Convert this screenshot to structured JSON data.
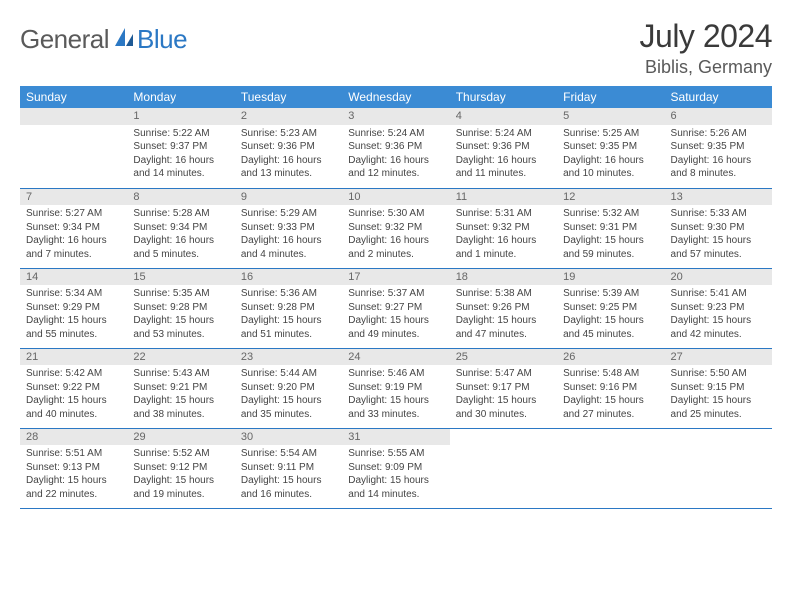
{
  "logo": {
    "general": "General",
    "blue": "Blue"
  },
  "header": {
    "title": "July 2024",
    "location": "Biblis, Germany"
  },
  "colors": {
    "header_bg": "#3b8bd4",
    "header_fg": "#ffffff",
    "rule": "#2b78c4",
    "band": "#e8e8e8",
    "text": "#444444",
    "logo_gray": "#5a5a5a",
    "logo_blue": "#2b78c4"
  },
  "daysOfWeek": [
    "Sunday",
    "Monday",
    "Tuesday",
    "Wednesday",
    "Thursday",
    "Friday",
    "Saturday"
  ],
  "weeks": [
    [
      null,
      {
        "n": "1",
        "sr": "Sunrise: 5:22 AM",
        "ss": "Sunset: 9:37 PM",
        "d1": "Daylight: 16 hours",
        "d2": "and 14 minutes."
      },
      {
        "n": "2",
        "sr": "Sunrise: 5:23 AM",
        "ss": "Sunset: 9:36 PM",
        "d1": "Daylight: 16 hours",
        "d2": "and 13 minutes."
      },
      {
        "n": "3",
        "sr": "Sunrise: 5:24 AM",
        "ss": "Sunset: 9:36 PM",
        "d1": "Daylight: 16 hours",
        "d2": "and 12 minutes."
      },
      {
        "n": "4",
        "sr": "Sunrise: 5:24 AM",
        "ss": "Sunset: 9:36 PM",
        "d1": "Daylight: 16 hours",
        "d2": "and 11 minutes."
      },
      {
        "n": "5",
        "sr": "Sunrise: 5:25 AM",
        "ss": "Sunset: 9:35 PM",
        "d1": "Daylight: 16 hours",
        "d2": "and 10 minutes."
      },
      {
        "n": "6",
        "sr": "Sunrise: 5:26 AM",
        "ss": "Sunset: 9:35 PM",
        "d1": "Daylight: 16 hours",
        "d2": "and 8 minutes."
      }
    ],
    [
      {
        "n": "7",
        "sr": "Sunrise: 5:27 AM",
        "ss": "Sunset: 9:34 PM",
        "d1": "Daylight: 16 hours",
        "d2": "and 7 minutes."
      },
      {
        "n": "8",
        "sr": "Sunrise: 5:28 AM",
        "ss": "Sunset: 9:34 PM",
        "d1": "Daylight: 16 hours",
        "d2": "and 5 minutes."
      },
      {
        "n": "9",
        "sr": "Sunrise: 5:29 AM",
        "ss": "Sunset: 9:33 PM",
        "d1": "Daylight: 16 hours",
        "d2": "and 4 minutes."
      },
      {
        "n": "10",
        "sr": "Sunrise: 5:30 AM",
        "ss": "Sunset: 9:32 PM",
        "d1": "Daylight: 16 hours",
        "d2": "and 2 minutes."
      },
      {
        "n": "11",
        "sr": "Sunrise: 5:31 AM",
        "ss": "Sunset: 9:32 PM",
        "d1": "Daylight: 16 hours",
        "d2": "and 1 minute."
      },
      {
        "n": "12",
        "sr": "Sunrise: 5:32 AM",
        "ss": "Sunset: 9:31 PM",
        "d1": "Daylight: 15 hours",
        "d2": "and 59 minutes."
      },
      {
        "n": "13",
        "sr": "Sunrise: 5:33 AM",
        "ss": "Sunset: 9:30 PM",
        "d1": "Daylight: 15 hours",
        "d2": "and 57 minutes."
      }
    ],
    [
      {
        "n": "14",
        "sr": "Sunrise: 5:34 AM",
        "ss": "Sunset: 9:29 PM",
        "d1": "Daylight: 15 hours",
        "d2": "and 55 minutes."
      },
      {
        "n": "15",
        "sr": "Sunrise: 5:35 AM",
        "ss": "Sunset: 9:28 PM",
        "d1": "Daylight: 15 hours",
        "d2": "and 53 minutes."
      },
      {
        "n": "16",
        "sr": "Sunrise: 5:36 AM",
        "ss": "Sunset: 9:28 PM",
        "d1": "Daylight: 15 hours",
        "d2": "and 51 minutes."
      },
      {
        "n": "17",
        "sr": "Sunrise: 5:37 AM",
        "ss": "Sunset: 9:27 PM",
        "d1": "Daylight: 15 hours",
        "d2": "and 49 minutes."
      },
      {
        "n": "18",
        "sr": "Sunrise: 5:38 AM",
        "ss": "Sunset: 9:26 PM",
        "d1": "Daylight: 15 hours",
        "d2": "and 47 minutes."
      },
      {
        "n": "19",
        "sr": "Sunrise: 5:39 AM",
        "ss": "Sunset: 9:25 PM",
        "d1": "Daylight: 15 hours",
        "d2": "and 45 minutes."
      },
      {
        "n": "20",
        "sr": "Sunrise: 5:41 AM",
        "ss": "Sunset: 9:23 PM",
        "d1": "Daylight: 15 hours",
        "d2": "and 42 minutes."
      }
    ],
    [
      {
        "n": "21",
        "sr": "Sunrise: 5:42 AM",
        "ss": "Sunset: 9:22 PM",
        "d1": "Daylight: 15 hours",
        "d2": "and 40 minutes."
      },
      {
        "n": "22",
        "sr": "Sunrise: 5:43 AM",
        "ss": "Sunset: 9:21 PM",
        "d1": "Daylight: 15 hours",
        "d2": "and 38 minutes."
      },
      {
        "n": "23",
        "sr": "Sunrise: 5:44 AM",
        "ss": "Sunset: 9:20 PM",
        "d1": "Daylight: 15 hours",
        "d2": "and 35 minutes."
      },
      {
        "n": "24",
        "sr": "Sunrise: 5:46 AM",
        "ss": "Sunset: 9:19 PM",
        "d1": "Daylight: 15 hours",
        "d2": "and 33 minutes."
      },
      {
        "n": "25",
        "sr": "Sunrise: 5:47 AM",
        "ss": "Sunset: 9:17 PM",
        "d1": "Daylight: 15 hours",
        "d2": "and 30 minutes."
      },
      {
        "n": "26",
        "sr": "Sunrise: 5:48 AM",
        "ss": "Sunset: 9:16 PM",
        "d1": "Daylight: 15 hours",
        "d2": "and 27 minutes."
      },
      {
        "n": "27",
        "sr": "Sunrise: 5:50 AM",
        "ss": "Sunset: 9:15 PM",
        "d1": "Daylight: 15 hours",
        "d2": "and 25 minutes."
      }
    ],
    [
      {
        "n": "28",
        "sr": "Sunrise: 5:51 AM",
        "ss": "Sunset: 9:13 PM",
        "d1": "Daylight: 15 hours",
        "d2": "and 22 minutes."
      },
      {
        "n": "29",
        "sr": "Sunrise: 5:52 AM",
        "ss": "Sunset: 9:12 PM",
        "d1": "Daylight: 15 hours",
        "d2": "and 19 minutes."
      },
      {
        "n": "30",
        "sr": "Sunrise: 5:54 AM",
        "ss": "Sunset: 9:11 PM",
        "d1": "Daylight: 15 hours",
        "d2": "and 16 minutes."
      },
      {
        "n": "31",
        "sr": "Sunrise: 5:55 AM",
        "ss": "Sunset: 9:09 PM",
        "d1": "Daylight: 15 hours",
        "d2": "and 14 minutes."
      },
      null,
      null,
      null
    ]
  ]
}
